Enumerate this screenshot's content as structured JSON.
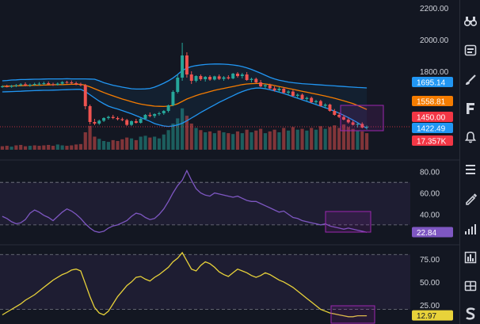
{
  "chart_data": [
    {
      "type": "candlestick",
      "ylim": [
        1200,
        2250
      ],
      "yticks": [
        "2200.00",
        "2000.00",
        "1800.00",
        "1600.00"
      ],
      "price_labels": [
        {
          "text": "1695.14",
          "value": 1695.14,
          "color": "#2196f3"
        },
        {
          "text": "1558.81",
          "value": 1558.81,
          "color": "#f57c00"
        },
        {
          "text": "1450.00",
          "value": 1450.0,
          "color": "#f23645"
        },
        {
          "text": "1422.49",
          "value": 1422.49,
          "color": "#2196f3"
        },
        {
          "text": "17.357K",
          "value": 17357,
          "color": "#f23645"
        }
      ],
      "hline": 1450,
      "candles": [
        [
          1700,
          1712,
          1695,
          1705
        ],
        [
          1705,
          1715,
          1698,
          1702
        ],
        [
          1702,
          1714,
          1696,
          1708
        ],
        [
          1708,
          1720,
          1700,
          1712
        ],
        [
          1712,
          1725,
          1705,
          1718
        ],
        [
          1718,
          1730,
          1705,
          1710
        ],
        [
          1710,
          1722,
          1702,
          1715
        ],
        [
          1715,
          1728,
          1708,
          1720
        ],
        [
          1720,
          1732,
          1710,
          1722
        ],
        [
          1722,
          1735,
          1712,
          1725
        ],
        [
          1725,
          1736,
          1715,
          1718
        ],
        [
          1718,
          1728,
          1708,
          1715
        ],
        [
          1715,
          1730,
          1710,
          1722
        ],
        [
          1722,
          1738,
          1714,
          1732
        ],
        [
          1732,
          1740,
          1722,
          1730
        ],
        [
          1730,
          1742,
          1718,
          1725
        ],
        [
          1725,
          1735,
          1712,
          1718
        ],
        [
          1718,
          1728,
          1705,
          1712
        ],
        [
          1712,
          1720,
          1560,
          1580
        ],
        [
          1580,
          1590,
          1465,
          1480
        ],
        [
          1480,
          1500,
          1460,
          1470
        ],
        [
          1470,
          1495,
          1462,
          1488
        ],
        [
          1488,
          1510,
          1480,
          1505
        ],
        [
          1505,
          1520,
          1495,
          1512
        ],
        [
          1512,
          1525,
          1498,
          1505
        ],
        [
          1505,
          1515,
          1490,
          1498
        ],
        [
          1498,
          1508,
          1485,
          1492
        ],
        [
          1492,
          1500,
          1455,
          1462
        ],
        [
          1462,
          1490,
          1455,
          1485
        ],
        [
          1485,
          1500,
          1470,
          1475
        ],
        [
          1475,
          1505,
          1470,
          1500
        ],
        [
          1500,
          1530,
          1495,
          1525
        ],
        [
          1525,
          1540,
          1510,
          1518
        ],
        [
          1518,
          1535,
          1505,
          1530
        ],
        [
          1530,
          1545,
          1520,
          1535
        ],
        [
          1535,
          1555,
          1525,
          1550
        ],
        [
          1550,
          1590,
          1540,
          1585
        ],
        [
          1585,
          1680,
          1580,
          1670
        ],
        [
          1670,
          1780,
          1660,
          1760
        ],
        [
          1760,
          1980,
          1740,
          1900
        ],
        [
          1900,
          1920,
          1760,
          1780
        ],
        [
          1780,
          1800,
          1720,
          1740
        ],
        [
          1740,
          1775,
          1730,
          1770
        ],
        [
          1770,
          1780,
          1740,
          1750
        ],
        [
          1750,
          1770,
          1735,
          1765
        ],
        [
          1765,
          1775,
          1740,
          1748
        ],
        [
          1748,
          1772,
          1742,
          1768
        ],
        [
          1768,
          1780,
          1745,
          1752
        ],
        [
          1752,
          1770,
          1740,
          1762
        ],
        [
          1762,
          1775,
          1748,
          1755
        ],
        [
          1755,
          1790,
          1750,
          1785
        ],
        [
          1785,
          1795,
          1760,
          1770
        ],
        [
          1770,
          1790,
          1755,
          1780
        ],
        [
          1780,
          1795,
          1740,
          1745
        ],
        [
          1745,
          1760,
          1730,
          1752
        ],
        [
          1752,
          1760,
          1725,
          1730
        ],
        [
          1730,
          1745,
          1700,
          1705
        ],
        [
          1705,
          1720,
          1690,
          1712
        ],
        [
          1712,
          1722,
          1688,
          1692
        ],
        [
          1692,
          1705,
          1672,
          1680
        ],
        [
          1680,
          1700,
          1665,
          1690
        ],
        [
          1690,
          1700,
          1660,
          1665
        ],
        [
          1665,
          1680,
          1648,
          1672
        ],
        [
          1672,
          1682,
          1640,
          1645
        ],
        [
          1645,
          1660,
          1630,
          1652
        ],
        [
          1652,
          1660,
          1620,
          1625
        ],
        [
          1625,
          1640,
          1612,
          1632
        ],
        [
          1632,
          1640,
          1600,
          1605
        ],
        [
          1605,
          1620,
          1590,
          1612
        ],
        [
          1612,
          1620,
          1578,
          1582
        ],
        [
          1582,
          1598,
          1565,
          1590
        ],
        [
          1590,
          1596,
          1545,
          1550
        ],
        [
          1550,
          1562,
          1520,
          1525
        ],
        [
          1525,
          1540,
          1505,
          1512
        ],
        [
          1512,
          1525,
          1490,
          1495
        ],
        [
          1495,
          1505,
          1470,
          1478
        ],
        [
          1478,
          1490,
          1458,
          1462
        ],
        [
          1462,
          1475,
          1445,
          1468
        ],
        [
          1468,
          1478,
          1440,
          1445
        ],
        [
          1445,
          1458,
          1432,
          1450
        ]
      ],
      "volumes": [
        [
          8,
          0
        ],
        [
          9,
          0
        ],
        [
          7,
          1
        ],
        [
          10,
          0
        ],
        [
          11,
          0
        ],
        [
          8,
          0
        ],
        [
          9,
          1
        ],
        [
          10,
          0
        ],
        [
          9,
          0
        ],
        [
          10,
          0
        ],
        [
          11,
          0
        ],
        [
          9,
          0
        ],
        [
          12,
          1
        ],
        [
          10,
          1
        ],
        [
          9,
          0
        ],
        [
          10,
          0
        ],
        [
          12,
          0
        ],
        [
          13,
          0
        ],
        [
          40,
          0
        ],
        [
          55,
          0
        ],
        [
          30,
          0
        ],
        [
          25,
          1
        ],
        [
          20,
          1
        ],
        [
          18,
          1
        ],
        [
          22,
          0
        ],
        [
          20,
          0
        ],
        [
          24,
          0
        ],
        [
          28,
          0
        ],
        [
          26,
          1
        ],
        [
          22,
          0
        ],
        [
          30,
          1
        ],
        [
          32,
          1
        ],
        [
          28,
          0
        ],
        [
          30,
          1
        ],
        [
          26,
          1
        ],
        [
          35,
          1
        ],
        [
          45,
          1
        ],
        [
          60,
          1
        ],
        [
          72,
          1
        ],
        [
          95,
          1
        ],
        [
          78,
          0
        ],
        [
          60,
          0
        ],
        [
          50,
          1
        ],
        [
          45,
          0
        ],
        [
          40,
          1
        ],
        [
          42,
          0
        ],
        [
          38,
          1
        ],
        [
          44,
          0
        ],
        [
          40,
          1
        ],
        [
          38,
          0
        ],
        [
          36,
          1
        ],
        [
          42,
          0
        ],
        [
          38,
          1
        ],
        [
          46,
          0
        ],
        [
          40,
          1
        ],
        [
          44,
          0
        ],
        [
          48,
          0
        ],
        [
          38,
          1
        ],
        [
          42,
          0
        ],
        [
          46,
          0
        ],
        [
          40,
          1
        ],
        [
          50,
          0
        ],
        [
          44,
          1
        ],
        [
          52,
          0
        ],
        [
          46,
          1
        ],
        [
          48,
          0
        ],
        [
          44,
          1
        ],
        [
          50,
          0
        ],
        [
          46,
          1
        ],
        [
          54,
          0
        ],
        [
          48,
          1
        ],
        [
          52,
          0
        ],
        [
          56,
          0
        ],
        [
          50,
          0
        ],
        [
          58,
          0
        ],
        [
          52,
          0
        ],
        [
          48,
          0
        ],
        [
          44,
          1
        ],
        [
          42,
          0
        ],
        [
          38,
          0
        ]
      ],
      "bb_upper": [
        1740,
        1742,
        1745,
        1746,
        1748,
        1748,
        1749,
        1750,
        1750,
        1751,
        1752,
        1752,
        1752,
        1752,
        1753,
        1752,
        1752,
        1752,
        1752,
        1751,
        1750,
        1740,
        1728,
        1720,
        1712,
        1706,
        1700,
        1695,
        1690,
        1688,
        1688,
        1689,
        1692,
        1700,
        1712,
        1725,
        1740,
        1758,
        1780,
        1805,
        1820,
        1830,
        1836,
        1840,
        1843,
        1845,
        1846,
        1846,
        1845,
        1843,
        1840,
        1836,
        1830,
        1822,
        1812,
        1800,
        1788,
        1775,
        1762,
        1752,
        1744,
        1738,
        1732,
        1728,
        1725,
        1722,
        1720,
        1718,
        1716,
        1714,
        1712,
        1710,
        1708,
        1706,
        1704,
        1702,
        1700,
        1698,
        1697,
        1695
      ],
      "bb_mid": [
        1705,
        1706,
        1707,
        1708,
        1709,
        1710,
        1711,
        1712,
        1712,
        1713,
        1714,
        1715,
        1716,
        1716,
        1717,
        1718,
        1718,
        1718,
        1712,
        1702,
        1690,
        1678,
        1666,
        1655,
        1645,
        1635,
        1625,
        1617,
        1608,
        1600,
        1593,
        1588,
        1584,
        1580,
        1579,
        1578,
        1580,
        1585,
        1595,
        1610,
        1625,
        1636,
        1647,
        1656,
        1664,
        1672,
        1680,
        1686,
        1692,
        1698,
        1704,
        1710,
        1716,
        1720,
        1722,
        1723,
        1723,
        1720,
        1716,
        1710,
        1704,
        1698,
        1692,
        1686,
        1680,
        1674,
        1668,
        1662,
        1656,
        1650,
        1644,
        1637,
        1630,
        1622,
        1614,
        1605,
        1596,
        1585,
        1572,
        1559
      ],
      "bb_lower": [
        1670,
        1671,
        1672,
        1673,
        1674,
        1676,
        1677,
        1678,
        1679,
        1680,
        1680,
        1681,
        1682,
        1683,
        1684,
        1685,
        1686,
        1686,
        1672,
        1652,
        1632,
        1612,
        1595,
        1580,
        1570,
        1562,
        1552,
        1542,
        1532,
        1520,
        1508,
        1496,
        1484,
        1470,
        1462,
        1455,
        1452,
        1455,
        1462,
        1472,
        1488,
        1505,
        1522,
        1540,
        1556,
        1572,
        1588,
        1604,
        1618,
        1632,
        1646,
        1660,
        1672,
        1682,
        1690,
        1694,
        1694,
        1690,
        1684,
        1676,
        1668,
        1660,
        1650,
        1640,
        1630,
        1620,
        1610,
        1600,
        1590,
        1580,
        1570,
        1560,
        1548,
        1536,
        1522,
        1508,
        1492,
        1476,
        1458,
        1440
      ]
    },
    {
      "type": "line",
      "yticks": [
        "80.00",
        "60.00",
        "40.00"
      ],
      "ylim": [
        18,
        88
      ],
      "band": [
        30,
        70
      ],
      "current_label": "22.84",
      "current_value": 22.84,
      "values": [
        38,
        36,
        33,
        31,
        32,
        35,
        41,
        44,
        42,
        39,
        37,
        34,
        38,
        42,
        45,
        43,
        40,
        36,
        31,
        27,
        24,
        23,
        24,
        27,
        29,
        30,
        32,
        34,
        38,
        41,
        40,
        37,
        35,
        36,
        40,
        45,
        52,
        60,
        67,
        72,
        81,
        72,
        64,
        60,
        58,
        57,
        60,
        59,
        58,
        57,
        56,
        57,
        55,
        53,
        52,
        52,
        50,
        48,
        46,
        44,
        42,
        43,
        40,
        37,
        36,
        34,
        33,
        32,
        31,
        30,
        31,
        29,
        28,
        27,
        26,
        27,
        26,
        25,
        24,
        23
      ]
    },
    {
      "type": "line",
      "yticks": [
        "75.00",
        "50.00",
        "25.00"
      ],
      "ylim": [
        4,
        88
      ],
      "band": [
        20,
        80
      ],
      "current_label": "12.97",
      "current_value": 12.97,
      "values": [
        14,
        17,
        20,
        23,
        26,
        30,
        33,
        36,
        40,
        44,
        48,
        52,
        55,
        58,
        60,
        63,
        64,
        62,
        48,
        34,
        22,
        16,
        14,
        18,
        26,
        34,
        40,
        46,
        50,
        55,
        56,
        53,
        51,
        55,
        58,
        62,
        66,
        72,
        76,
        82,
        73,
        64,
        62,
        68,
        72,
        70,
        66,
        61,
        58,
        56,
        60,
        64,
        62,
        60,
        57,
        55,
        57,
        60,
        58,
        55,
        52,
        50,
        47,
        44,
        40,
        36,
        32,
        28,
        24,
        20,
        18,
        16,
        15,
        14,
        13,
        12,
        12,
        13,
        13,
        13
      ]
    }
  ]
}
